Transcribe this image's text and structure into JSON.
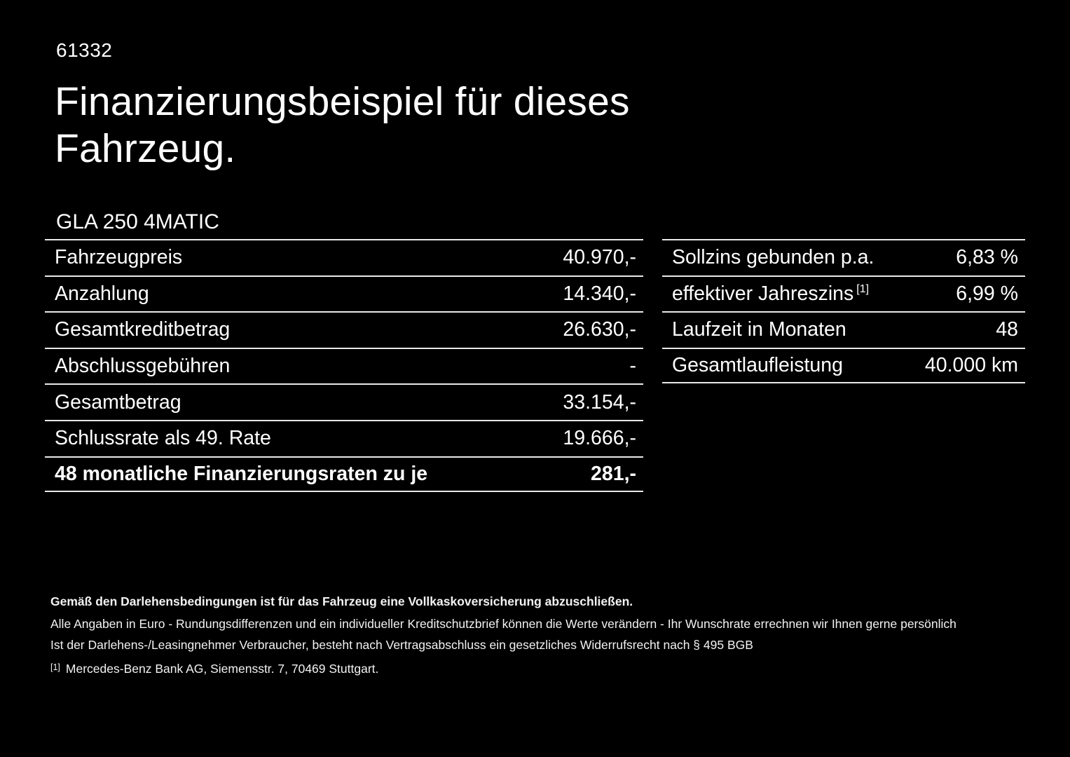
{
  "page": {
    "doc_id": "61332",
    "title": "Finanzierungsbeispiel für dieses Fahrzeug.",
    "model": "GLA 250 4MATIC"
  },
  "colors": {
    "background": "#000000",
    "text": "#ffffff",
    "divider": "#e9e9e9"
  },
  "left_table": {
    "rows": [
      {
        "label": "Fahrzeugpreis",
        "value": "40.970,-"
      },
      {
        "label": "Anzahlung",
        "value": "14.340,-"
      },
      {
        "label": "Gesamtkreditbetrag",
        "value": "26.630,-"
      },
      {
        "label": "Abschlussgebühren",
        "value": "-"
      },
      {
        "label": "Gesamtbetrag",
        "value": "33.154,-"
      },
      {
        "label": "Schlussrate als 49. Rate",
        "value": "19.666,-"
      },
      {
        "label": "48 monatliche Finanzierungsraten zu je",
        "value": "281,-"
      }
    ]
  },
  "right_table": {
    "rows": [
      {
        "label": "Sollzins gebunden p.a.",
        "sup": "",
        "value": "6,83 %"
      },
      {
        "label": "effektiver Jahreszins",
        "sup": "[1]",
        "value": "6,99 %"
      },
      {
        "label": "Laufzeit in Monaten",
        "sup": "",
        "value": "48"
      },
      {
        "label": "Gesamtlaufleistung",
        "sup": "",
        "value": "40.000 km"
      }
    ]
  },
  "footer": {
    "bold_note": "Gemäß den Darlehensbedingungen ist für das Fahrzeug eine Vollkaskoversicherung abzuschließen.",
    "note_2": "Alle Angaben in Euro - Rundungsdifferenzen und ein individueller Kreditschutzbrief können die Werte verändern - Ihr Wunschrate errechnen wir Ihnen gerne persönlich",
    "note_3": "Ist der Darlehens-/Leasingnehmer Verbraucher, besteht nach Vertragsabschluss ein gesetzliches Widerrufsrecht nach § 495 BGB",
    "footnote_marker": "[1]",
    "footnote_text": "Mercedes-Benz Bank AG, Siemensstr. 7, 70469 Stuttgart."
  }
}
